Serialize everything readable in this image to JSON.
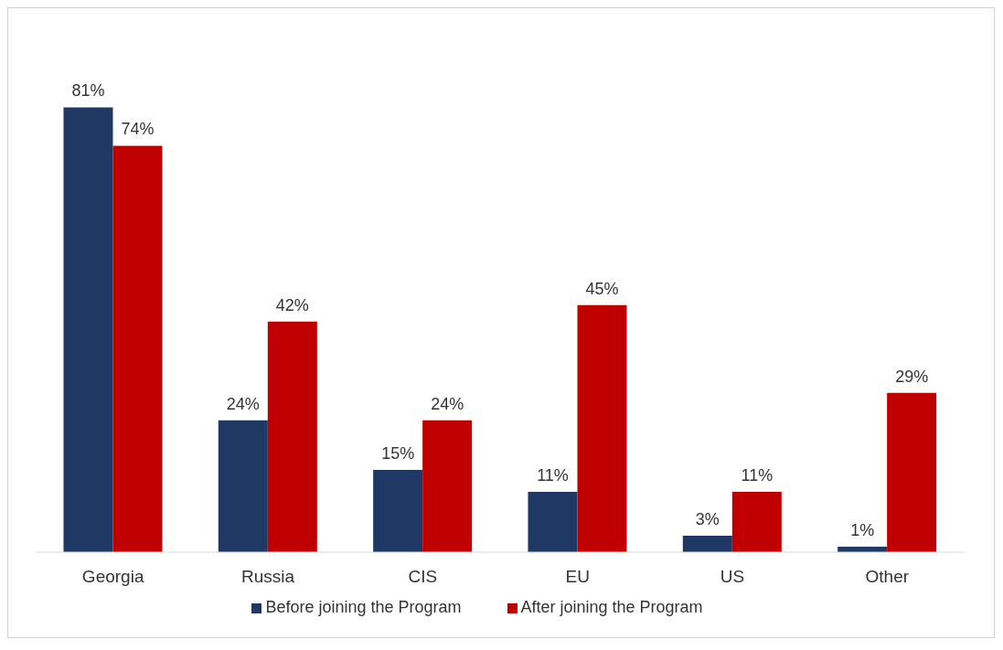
{
  "chart_data": {
    "type": "bar",
    "categories": [
      "Georgia",
      "Russia",
      "CIS",
      "EU",
      "US",
      "Other"
    ],
    "series": [
      {
        "name": "Before joining the Program",
        "color": "#1f3864",
        "values": [
          81,
          24,
          15,
          11,
          3,
          1
        ],
        "value_labels": [
          "81%",
          "24%",
          "15%",
          "11%",
          "3%",
          "1%"
        ]
      },
      {
        "name": "After joining the Program",
        "color": "#c00000",
        "values": [
          74,
          42,
          24,
          45,
          11,
          29
        ],
        "value_labels": [
          "74%",
          "42%",
          "24%",
          "45%",
          "11%",
          "29%"
        ]
      }
    ],
    "legend": "bottom",
    "grid": false
  }
}
